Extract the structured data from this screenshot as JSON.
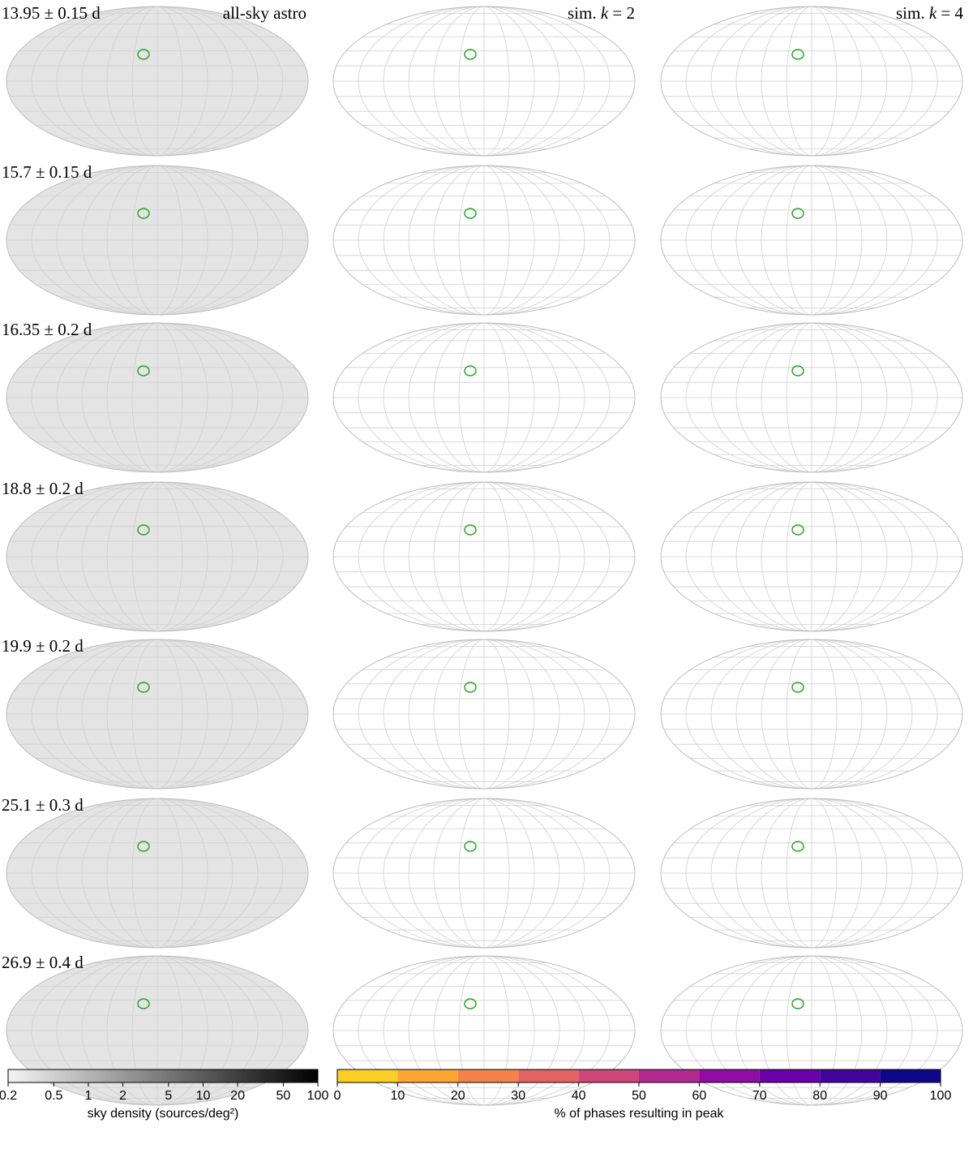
{
  "columns": [
    {
      "title_parts": [
        "all-sky astro"
      ]
    },
    {
      "title_parts": [
        "sim. ",
        "k",
        " = 2"
      ]
    },
    {
      "title_parts": [
        "sim. ",
        "k",
        " = 4"
      ]
    }
  ],
  "rows": [
    "13.95 ± 0.15 d",
    "15.7 ± 0.15 d",
    "16.35 ± 0.2 d",
    "18.8 ± 0.2 d",
    "19.9 ± 0.2 d",
    "25.1 ± 0.3 d",
    "26.9 ± 0.4 d"
  ],
  "colorbars": [
    {
      "label": "sky density (sources/deg²)",
      "lim": [
        0.2,
        100
      ],
      "ticks": [
        0.2,
        0.5,
        1,
        2,
        5,
        10,
        20,
        50,
        100
      ],
      "log": true,
      "colors": [
        "#f4f4f4",
        "#000000"
      ]
    },
    {
      "label": "% of phases resulting in peak",
      "lim": [
        0,
        100
      ],
      "ticks": [
        0,
        10,
        20,
        30,
        40,
        50,
        60,
        70,
        80,
        90,
        100
      ],
      "log": false,
      "colors": [
        "#fccf26",
        "#fca636",
        "#f2844b",
        "#e16462",
        "#cc4778",
        "#b12a90",
        "#8f0da4",
        "#6a00a8",
        "#41049d",
        "#0d0887"
      ]
    }
  ]
}
